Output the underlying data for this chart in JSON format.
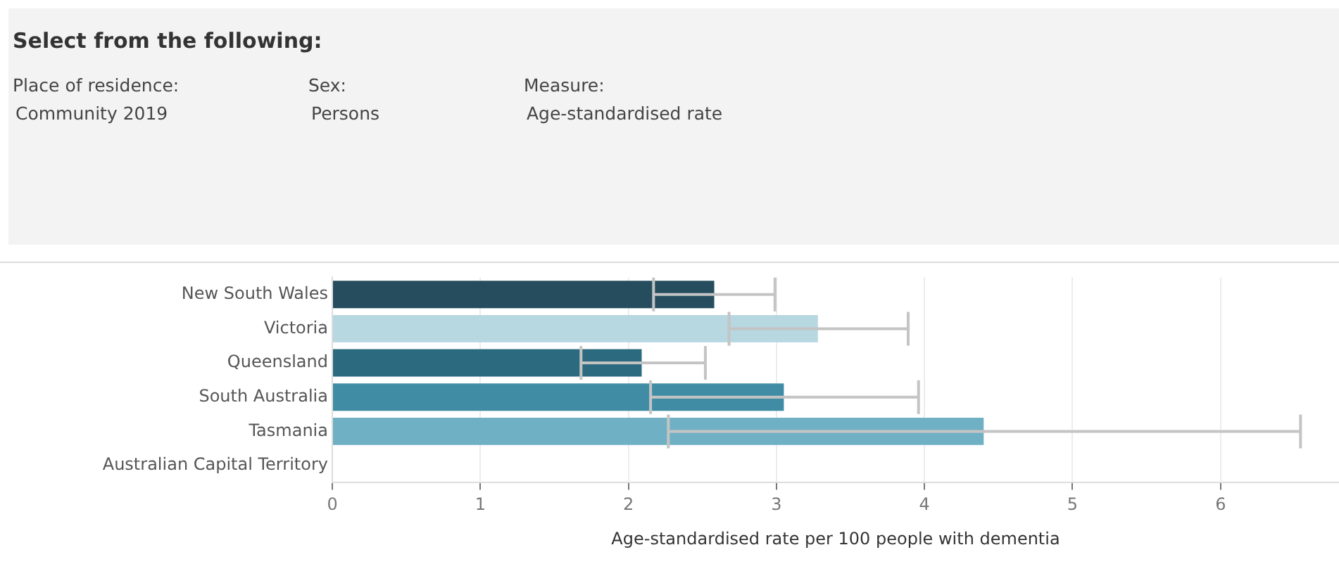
{
  "chart_data": {
    "type": "bar",
    "orientation": "horizontal",
    "title": "Select from the following:",
    "annotations": [
      "Place of residence:",
      "Community 2019",
      "Sex:",
      "Persons",
      "Measure:",
      "Age-standardised rate"
    ],
    "xlabel": "Age-standardised rate per 100 people with dementia",
    "categories": [
      "New South Wales",
      "Victoria",
      "Queensland",
      "South Australia",
      "Tasmania",
      "Australian Capital Territory"
    ],
    "values": [
      2.58,
      3.28,
      2.09,
      3.05,
      4.4,
      null
    ],
    "colors": [
      "#254d5e",
      "#b7d7e1",
      "#2c6a80",
      "#408ca4",
      "#70b0c4",
      "#70b0c4"
    ],
    "errors": [
      [
        2.17,
        2.99
      ],
      [
        2.68,
        3.89
      ],
      [
        1.68,
        2.52
      ],
      [
        2.15,
        3.96
      ],
      [
        2.27,
        6.54
      ],
      null
    ],
    "xlim": [
      0,
      6.8
    ],
    "xticks": [
      0,
      1,
      2,
      3,
      4,
      5,
      6
    ],
    "grid": "x",
    "legend": false
  }
}
